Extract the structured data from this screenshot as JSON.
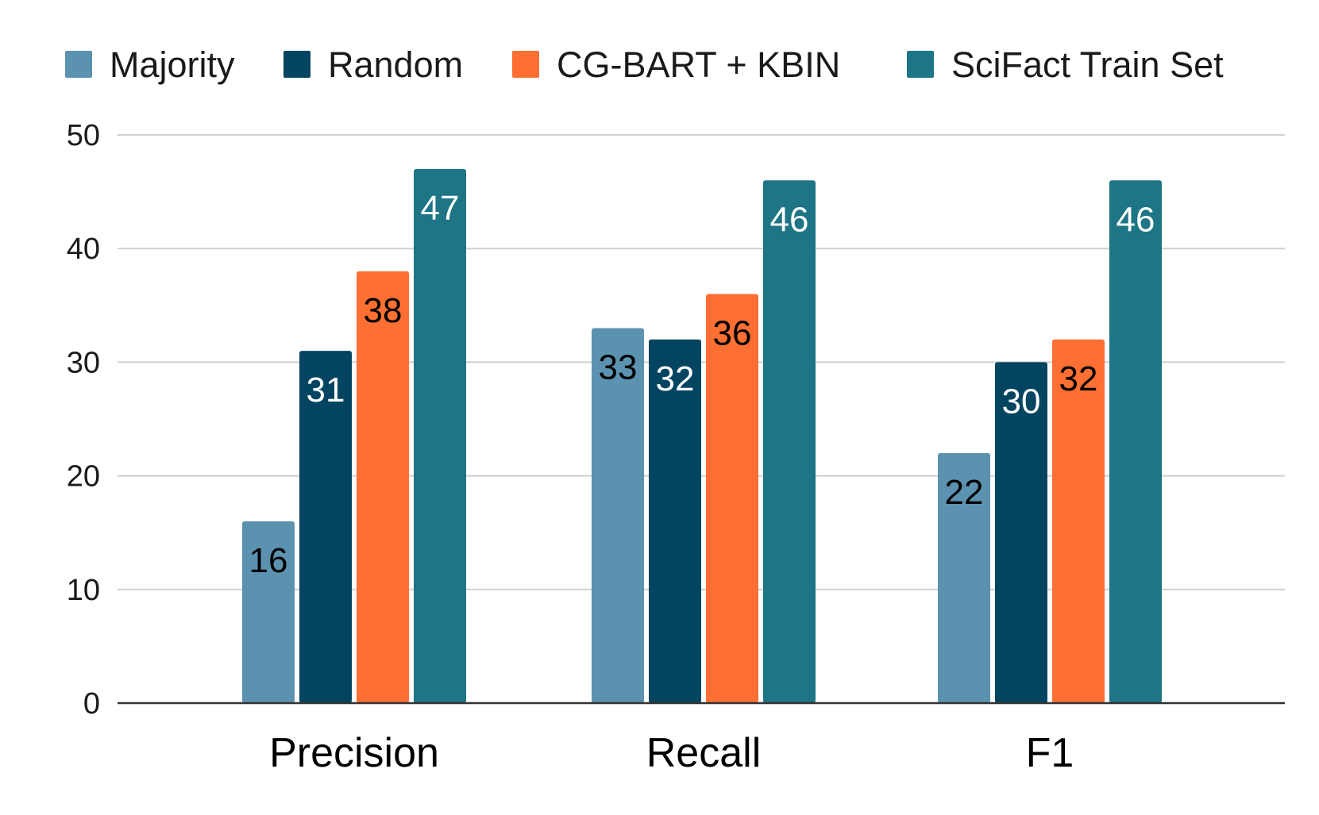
{
  "chart_data": {
    "type": "bar",
    "title": "",
    "xlabel": "",
    "ylabel": "",
    "categories": [
      "Precision",
      "Recall",
      "F1"
    ],
    "series": [
      {
        "name": "Majority",
        "color": "#5b92b0",
        "label_color": "#000000",
        "values": [
          16,
          33,
          22
        ]
      },
      {
        "name": "Random",
        "color": "#034561",
        "label_color": "#ffffff",
        "values": [
          31,
          32,
          30
        ]
      },
      {
        "name": "CG-BART + KBIN",
        "color": "#fd6f32",
        "label_color": "#000000",
        "values": [
          38,
          36,
          32
        ]
      },
      {
        "name": "SciFact Train Set",
        "color": "#1d7585",
        "label_color": "#ffffff",
        "values": [
          47,
          46,
          46
        ]
      }
    ],
    "ylim": [
      0,
      50
    ],
    "yticks": [
      0,
      10,
      20,
      30,
      40,
      50
    ],
    "grid": true,
    "legend": "top",
    "data_labels": true
  }
}
